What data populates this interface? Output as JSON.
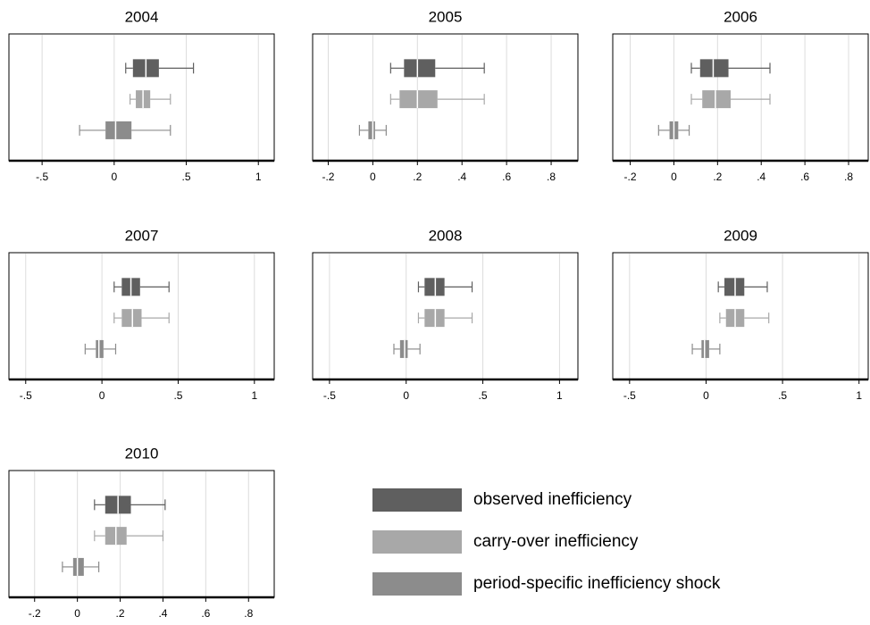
{
  "chart_data": [
    {
      "type": "box",
      "title": "2004",
      "xlim": [
        -0.73,
        1.11
      ],
      "xticks": [
        {
          "value": -0.5,
          "label": "-.5"
        },
        0,
        {
          "value": 0.5,
          "label": ".5"
        },
        1
      ],
      "series": [
        {
          "values": {
            "low": 0.08,
            "q1": 0.13,
            "median": 0.22,
            "q3": 0.31,
            "high": 0.55
          }
        },
        {
          "values": {
            "low": 0.11,
            "q1": 0.15,
            "median": 0.2,
            "q3": 0.25,
            "high": 0.39
          }
        },
        {
          "values": {
            "low": -0.24,
            "q1": -0.06,
            "median": 0.01,
            "q3": 0.12,
            "high": 0.39
          }
        }
      ]
    },
    {
      "type": "box",
      "title": "2005",
      "xlim": [
        -0.27,
        0.92
      ],
      "xticks": [
        {
          "value": -0.2,
          "label": "-.2"
        },
        0,
        {
          "value": 0.2,
          "label": ".2"
        },
        {
          "value": 0.4,
          "label": ".4"
        },
        {
          "value": 0.6,
          "label": ".6"
        },
        {
          "value": 0.8,
          "label": ".8"
        }
      ],
      "series": [
        {
          "values": {
            "low": 0.08,
            "q1": 0.14,
            "median": 0.2,
            "q3": 0.28,
            "high": 0.5
          }
        },
        {
          "values": {
            "low": 0.08,
            "q1": 0.12,
            "median": 0.2,
            "q3": 0.29,
            "high": 0.5
          }
        },
        {
          "values": {
            "low": -0.06,
            "q1": -0.02,
            "median": 0,
            "q3": 0.01,
            "high": 0.06
          }
        }
      ]
    },
    {
      "type": "box",
      "title": "2006",
      "xlim": [
        -0.28,
        0.89
      ],
      "xticks": [
        {
          "value": -0.2,
          "label": "-.2"
        },
        0,
        {
          "value": 0.2,
          "label": ".2"
        },
        {
          "value": 0.4,
          "label": ".4"
        },
        {
          "value": 0.6,
          "label": ".6"
        },
        {
          "value": 0.8,
          "label": ".8"
        }
      ],
      "series": [
        {
          "values": {
            "low": 0.08,
            "q1": 0.12,
            "median": 0.18,
            "q3": 0.25,
            "high": 0.44
          }
        },
        {
          "values": {
            "low": 0.08,
            "q1": 0.13,
            "median": 0.19,
            "q3": 0.26,
            "high": 0.44
          }
        },
        {
          "values": {
            "low": -0.07,
            "q1": -0.02,
            "median": 0,
            "q3": 0.02,
            "high": 0.07
          }
        }
      ]
    },
    {
      "type": "box",
      "title": "2007",
      "xlim": [
        -0.61,
        1.13
      ],
      "xticks": [
        {
          "value": -0.5,
          "label": "-.5"
        },
        0,
        {
          "value": 0.5,
          "label": ".5"
        },
        1
      ],
      "series": [
        {
          "values": {
            "low": 0.08,
            "q1": 0.13,
            "median": 0.19,
            "q3": 0.25,
            "high": 0.44
          }
        },
        {
          "values": {
            "low": 0.08,
            "q1": 0.13,
            "median": 0.2,
            "q3": 0.26,
            "high": 0.44
          }
        },
        {
          "values": {
            "low": -0.11,
            "q1": -0.04,
            "median": -0.02,
            "q3": 0.01,
            "high": 0.09
          }
        }
      ]
    },
    {
      "type": "box",
      "title": "2008",
      "xlim": [
        -0.61,
        1.12
      ],
      "xticks": [
        {
          "value": -0.5,
          "label": "-.5"
        },
        0,
        {
          "value": 0.5,
          "label": ".5"
        },
        1
      ],
      "series": [
        {
          "values": {
            "low": 0.08,
            "q1": 0.12,
            "median": 0.19,
            "q3": 0.25,
            "high": 0.43
          }
        },
        {
          "values": {
            "low": 0.08,
            "q1": 0.12,
            "median": 0.19,
            "q3": 0.25,
            "high": 0.43
          }
        },
        {
          "values": {
            "low": -0.08,
            "q1": -0.04,
            "median": -0.01,
            "q3": 0.01,
            "high": 0.09
          }
        }
      ]
    },
    {
      "type": "box",
      "title": "2009",
      "xlim": [
        -0.61,
        1.06
      ],
      "xticks": [
        {
          "value": -0.5,
          "label": "-.5"
        },
        0,
        {
          "value": 0.5,
          "label": ".5"
        },
        1
      ],
      "series": [
        {
          "values": {
            "low": 0.08,
            "q1": 0.12,
            "median": 0.19,
            "q3": 0.25,
            "high": 0.4
          }
        },
        {
          "values": {
            "low": 0.09,
            "q1": 0.13,
            "median": 0.19,
            "q3": 0.25,
            "high": 0.41
          }
        },
        {
          "values": {
            "low": -0.09,
            "q1": -0.03,
            "median": -0.01,
            "q3": 0.02,
            "high": 0.09
          }
        }
      ]
    },
    {
      "type": "box",
      "title": "2010",
      "xlim": [
        -0.32,
        0.92
      ],
      "xticks": [
        {
          "value": -0.2,
          "label": "-.2"
        },
        0,
        {
          "value": 0.2,
          "label": ".2"
        },
        {
          "value": 0.4,
          "label": ".4"
        },
        {
          "value": 0.6,
          "label": ".6"
        },
        {
          "value": 0.8,
          "label": ".8"
        }
      ],
      "series": [
        {
          "values": {
            "low": 0.08,
            "q1": 0.13,
            "median": 0.19,
            "q3": 0.25,
            "high": 0.41
          }
        },
        {
          "values": {
            "low": 0.08,
            "q1": 0.13,
            "median": 0.18,
            "q3": 0.23,
            "high": 0.4
          }
        },
        {
          "values": {
            "low": -0.07,
            "q1": -0.02,
            "median": 0,
            "q3": 0.03,
            "high": 0.1
          }
        }
      ]
    }
  ],
  "legend": [
    {
      "name": "observed inefficiency",
      "color": "#5f5f5f"
    },
    {
      "name": "carry-over inefficiency",
      "color": "#a8a8a8"
    },
    {
      "name": "period-specific inefficiency shock",
      "color": "#8c8c8c"
    }
  ]
}
